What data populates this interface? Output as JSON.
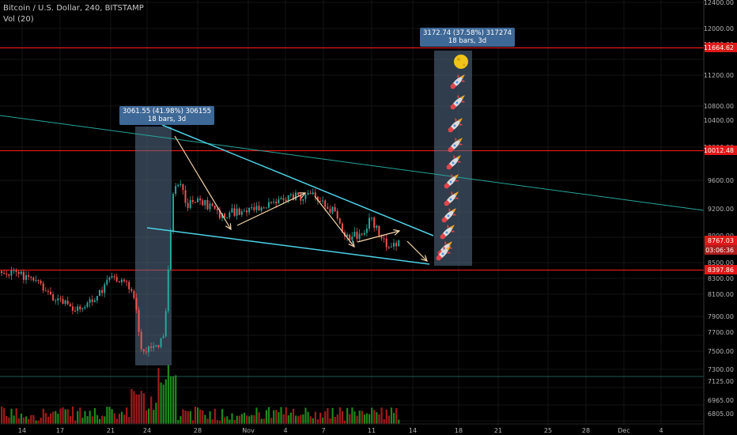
{
  "legend": {
    "symbol": "Bitcoin / U.S. Dollar, 240, BITSTAMP",
    "volume": "Vol (20)"
  },
  "colors": {
    "background": "#000000",
    "grid": "#141414",
    "up": "#26a69a",
    "down": "#ef5350",
    "vol_up": "#1c8a1c",
    "vol_down": "#a31b1b",
    "level_line": "#e01818",
    "triangle": "#4dd2e6",
    "trendline": "#26a69a",
    "box_fill": "#56708a",
    "arrow": "#f5d5a8",
    "tag_fill": "#3e6896"
  },
  "y_axis": {
    "ticks": [
      "12400.00",
      "12000.00",
      "11600.00",
      "11200.00",
      "10800.00",
      "10400.00",
      "10000.00",
      "9600.00",
      "9200.00",
      "8900.00",
      "8500.00",
      "8300.00",
      "8100.00",
      "7900.00",
      "7700.00",
      "7500.00",
      "7300.00",
      "7125.00",
      "6965.00",
      "6805.00"
    ]
  },
  "x_axis": {
    "ticks": [
      "14",
      "17",
      "21",
      "24",
      "28",
      "Nov",
      "4",
      "7",
      "11",
      "14",
      "18",
      "21",
      "25",
      "28",
      "Dec",
      "4"
    ]
  },
  "price_labels": [
    {
      "text": "11664.62",
      "style": "red"
    },
    {
      "text": "10012.48",
      "style": "red"
    },
    {
      "text": "8767.03",
      "style": "red"
    },
    {
      "text": "03:06:36",
      "style": "red"
    },
    {
      "text": "8397.86",
      "style": "red"
    }
  ],
  "measure_tags": [
    {
      "line1": "3061.55 (41.98%) 306155",
      "line2": "18 bars, 3d"
    },
    {
      "line1": "3172.74 (37.58%) 317274",
      "line2": "18 bars, 3d"
    }
  ],
  "projection_icons": {
    "top": "moon-icon",
    "repeat": "rocket-icon",
    "rocket_count": 12
  }
}
